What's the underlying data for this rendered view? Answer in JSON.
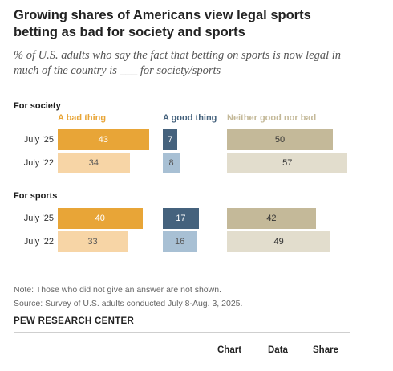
{
  "title": "Growing shares of Americans view legal sports betting as bad for society and sports",
  "subtitle": "% of U.S. adults who say the fact that betting on sports is now legal in much of the country is ___ for society/sports",
  "note": "Note: Those who did not give an answer are not shown.",
  "source": "Source: Survey of U.S. adults conducted July 8-Aug. 3, 2025.",
  "org": "PEW RESEARCH CENTER",
  "footer": {
    "chart_label": "Chart",
    "data_label": "Data",
    "share_label": "Share"
  },
  "colors": {
    "bad_2025": "#e8a537",
    "bad_2022": "#f7d5a6",
    "good_2025": "#45627d",
    "good_2022": "#a8c0d4",
    "neither_2025": "#c4b999",
    "neither_2022": "#e2ddcd",
    "header_bad": "#e8a537",
    "header_good": "#45627d",
    "header_neither": "#c4b999"
  },
  "chart_data": {
    "type": "bar",
    "orientation": "horizontal",
    "columns": [
      "A bad thing",
      "A good thing",
      "Neither good nor bad"
    ],
    "groups": [
      {
        "name": "For society",
        "rows": [
          {
            "label": "July ’25",
            "values": [
              43,
              7,
              50
            ]
          },
          {
            "label": "July ’22",
            "values": [
              34,
              8,
              57
            ]
          }
        ]
      },
      {
        "name": "For sports",
        "rows": [
          {
            "label": "July ’25",
            "values": [
              40,
              17,
              42
            ]
          },
          {
            "label": "July ’22",
            "values": [
              33,
              16,
              49
            ]
          }
        ]
      }
    ]
  }
}
